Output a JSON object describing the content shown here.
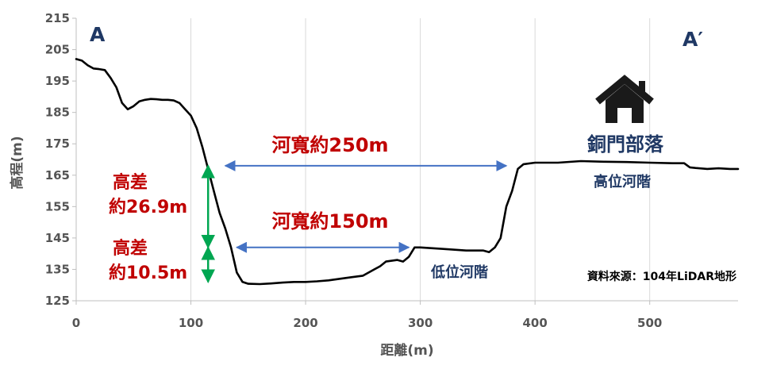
{
  "chart_data": {
    "type": "line",
    "xlabel": "距離(m)",
    "ylabel": "高程(m)",
    "xlim": [
      0,
      577
    ],
    "ylim": [
      125,
      215
    ],
    "xticks": [
      0,
      100,
      200,
      300,
      400,
      500
    ],
    "yticks": [
      125,
      135,
      145,
      155,
      165,
      175,
      185,
      195,
      205,
      215
    ],
    "grid": "vertical",
    "series": [
      {
        "line_color": "#000000",
        "x": [
          0,
          5,
          10,
          15,
          20,
          25,
          30,
          35,
          40,
          45,
          50,
          55,
          60,
          65,
          70,
          75,
          80,
          85,
          90,
          95,
          100,
          105,
          110,
          115,
          120,
          125,
          130,
          135,
          140,
          145,
          150,
          160,
          170,
          180,
          190,
          200,
          210,
          220,
          230,
          240,
          250,
          260,
          265,
          270,
          280,
          285,
          290,
          295,
          300,
          320,
          340,
          355,
          360,
          365,
          370,
          375,
          380,
          385,
          390,
          400,
          420,
          440,
          460,
          480,
          500,
          520,
          530,
          535,
          540,
          550,
          560,
          570,
          577
        ],
        "y": [
          202,
          201.5,
          200,
          199,
          198.8,
          198.5,
          196,
          193,
          188,
          186,
          187,
          188.5,
          189,
          189.3,
          189.2,
          189,
          189,
          188.8,
          188,
          186,
          184,
          180,
          174,
          167,
          160,
          153,
          148,
          142,
          134,
          131,
          130.4,
          130.3,
          130.5,
          130.8,
          131,
          131,
          131.2,
          131.5,
          132,
          132.5,
          133,
          135,
          136,
          137.5,
          138,
          137.5,
          139,
          142,
          142,
          141.5,
          141,
          141,
          140.5,
          142,
          145,
          155,
          160,
          167,
          168.5,
          169,
          169,
          169.5,
          169.3,
          169.2,
          169,
          168.8,
          168.8,
          167.5,
          167.3,
          167,
          167.2,
          167,
          167
        ]
      }
    ],
    "annotations": {
      "label_A": "A",
      "label_A_prime": "A′",
      "river_width_high": "河寬約250m",
      "river_width_low": "河寬約150m",
      "height_diff_top_line1": "高差",
      "height_diff_top_line2": "約26.9m",
      "height_diff_bottom_line1": "高差",
      "height_diff_bottom_line2": "約10.5m",
      "village": "銅門部落",
      "high_terrace": "高位河階",
      "low_terrace": "低位河階",
      "source": "資料來源：104年LiDAR地形"
    },
    "arrows": [
      {
        "orientation": "horizontal",
        "from": [
          130,
          168
        ],
        "to": [
          375,
          168
        ],
        "color": "#4472c4"
      },
      {
        "orientation": "horizontal",
        "from": [
          140,
          142
        ],
        "to": [
          290,
          142
        ],
        "color": "#4472c4"
      },
      {
        "orientation": "vertical",
        "from": [
          115,
          131
        ],
        "to": [
          115,
          168
        ],
        "split_at": 142,
        "color": "#00a651"
      }
    ],
    "colors": {
      "line": "#000000",
      "grid": "#d9d9d9",
      "axis_text": "#555555",
      "width_label": "#c00000",
      "height_label": "#c00000",
      "terrace_label": "#1f3864",
      "corner_label": "#1f3864",
      "village_label": "#1f3864",
      "source_label": "#000000",
      "width_arrow": "#4472c4",
      "height_arrow": "#00a651"
    },
    "icons": [
      "house-icon"
    ]
  }
}
